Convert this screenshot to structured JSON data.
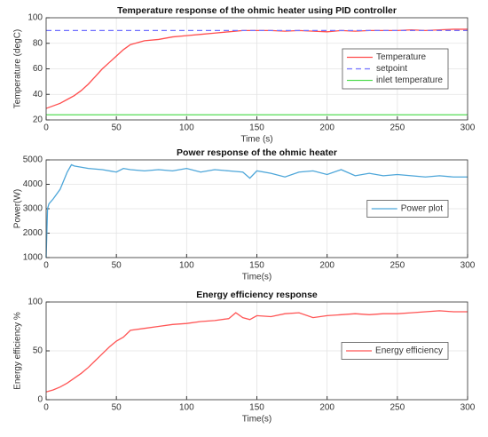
{
  "chart_data": [
    {
      "type": "line",
      "title": "Temperature response of the ohmic heater using PID controller",
      "xlabel": "Time (s)",
      "ylabel": "Temperature (degC)",
      "xlim": [
        0,
        300
      ],
      "xticks": [
        0,
        50,
        100,
        150,
        200,
        250,
        300
      ],
      "ylim": [
        20,
        100
      ],
      "yticks": [
        20,
        40,
        60,
        80,
        100
      ],
      "grid": true,
      "legend": "east",
      "series": [
        {
          "name": "Temperature",
          "color": "#ff4d4d",
          "x": [
            0,
            5,
            10,
            15,
            20,
            25,
            30,
            35,
            40,
            45,
            50,
            55,
            60,
            70,
            80,
            90,
            100,
            110,
            120,
            130,
            140,
            150,
            160,
            170,
            180,
            190,
            200,
            210,
            220,
            230,
            240,
            250,
            260,
            270,
            280,
            290,
            300
          ],
          "values": [
            29,
            31,
            33,
            36,
            39,
            43,
            48,
            54,
            60,
            65,
            70,
            75,
            79,
            82,
            83,
            85,
            86,
            87,
            88,
            89,
            90,
            90,
            90,
            89.5,
            90,
            89.5,
            89,
            90,
            89.5,
            90,
            90,
            90,
            90.5,
            90,
            90.5,
            91,
            91
          ]
        },
        {
          "name": "setpoint",
          "color": "#6f6fff",
          "style": "dashed",
          "x": [
            0,
            300
          ],
          "values": [
            90,
            90
          ]
        },
        {
          "name": "inlet temperature",
          "color": "#55dd55",
          "x": [
            0,
            300
          ],
          "values": [
            24,
            24
          ]
        }
      ]
    },
    {
      "type": "line",
      "title": "Power response of the ohmic heater",
      "xlabel": "Time(s)",
      "ylabel": "Power(W)",
      "xlim": [
        0,
        300
      ],
      "xticks": [
        0,
        50,
        100,
        150,
        200,
        250,
        300
      ],
      "ylim": [
        1000,
        5000
      ],
      "yticks": [
        1000,
        2000,
        3000,
        4000,
        5000
      ],
      "grid": true,
      "legend": "east",
      "series": [
        {
          "name": "Power plot",
          "color": "#4da6d9",
          "x": [
            0,
            1,
            2,
            5,
            10,
            15,
            18,
            20,
            25,
            30,
            40,
            50,
            55,
            60,
            70,
            80,
            90,
            100,
            110,
            120,
            130,
            140,
            145,
            150,
            160,
            170,
            180,
            190,
            200,
            210,
            220,
            230,
            240,
            250,
            260,
            270,
            280,
            290,
            300
          ],
          "values": [
            1000,
            3000,
            3200,
            3400,
            3800,
            4500,
            4800,
            4750,
            4700,
            4650,
            4600,
            4500,
            4650,
            4600,
            4550,
            4600,
            4550,
            4650,
            4500,
            4600,
            4550,
            4500,
            4250,
            4550,
            4450,
            4300,
            4500,
            4550,
            4400,
            4600,
            4350,
            4450,
            4350,
            4400,
            4350,
            4300,
            4350,
            4300,
            4300
          ]
        }
      ]
    },
    {
      "type": "line",
      "title": "Energy efficiency response",
      "xlabel": "Time(s)",
      "ylabel": "Energy efficiency %",
      "xlim": [
        0,
        300
      ],
      "xticks": [
        0,
        50,
        100,
        150,
        200,
        250,
        300
      ],
      "ylim": [
        0,
        100
      ],
      "yticks": [
        0,
        50,
        100
      ],
      "grid": true,
      "legend": "east",
      "series": [
        {
          "name": "Energy efficiency",
          "color": "#ff5555",
          "x": [
            0,
            5,
            10,
            15,
            20,
            25,
            30,
            35,
            40,
            45,
            50,
            55,
            60,
            70,
            80,
            90,
            100,
            110,
            120,
            130,
            135,
            140,
            145,
            150,
            160,
            170,
            180,
            190,
            200,
            210,
            220,
            230,
            240,
            250,
            260,
            270,
            280,
            290,
            300
          ],
          "values": [
            8,
            10,
            13,
            17,
            22,
            27,
            33,
            40,
            47,
            54,
            60,
            64,
            71,
            73,
            75,
            77,
            78,
            80,
            81,
            83,
            89,
            84,
            82,
            86,
            85,
            88,
            89,
            84,
            86,
            87,
            88,
            87,
            88,
            88,
            89,
            90,
            91,
            90,
            90
          ]
        }
      ]
    }
  ]
}
